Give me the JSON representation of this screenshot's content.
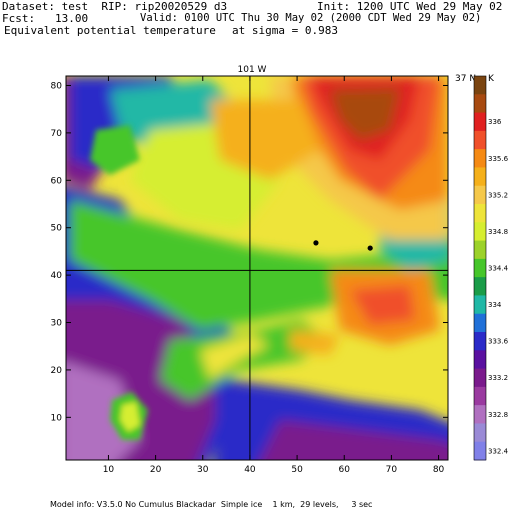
{
  "header": {
    "dataset_line": "Dataset: test  RIP: rip20020529 d3",
    "init_line": "Init: 1200 UTC Wed 29 May 02",
    "fcst_line": "Fcst:   13.00",
    "valid_line": "Valid: 0100 UTC Thu 30 May 02 (2000 CDT Wed 29 May 02)",
    "field_line": "Equivalent potential temperature",
    "sigma_line": "at sigma = 0.983"
  },
  "map_labels": {
    "top": "101 W",
    "right": "37 N",
    "colorbar_unit": "K"
  },
  "footer": "Model info: V3.5.0 No Cumulus Blackadar  Simple ice    1 km,  29 levels,     3 sec",
  "chart_data": {
    "type": "heatmap",
    "title": "Equivalent potential temperature",
    "xlabel": "",
    "ylabel": "",
    "x_ticks": [
      10,
      20,
      30,
      40,
      50,
      60,
      70,
      80
    ],
    "y_ticks": [
      10,
      20,
      30,
      40,
      50,
      60,
      70,
      80
    ],
    "xlim": [
      1,
      82
    ],
    "ylim": [
      1,
      82
    ],
    "colorbar": {
      "unit": "K",
      "levels": [
        {
          "label": "",
          "color": "#7a4410"
        },
        {
          "label": "",
          "color": "#a84a10"
        },
        {
          "label": "336",
          "color": "#e02020"
        },
        {
          "label": "",
          "color": "#f0502a"
        },
        {
          "label": "335.6",
          "color": "#f58a14"
        },
        {
          "label": "",
          "color": "#f5b01a"
        },
        {
          "label": "335.2",
          "color": "#f5c84a"
        },
        {
          "label": "",
          "color": "#eee43a"
        },
        {
          "label": "334.8",
          "color": "#d6ee30"
        },
        {
          "label": "",
          "color": "#9cd22a"
        },
        {
          "label": "334.4",
          "color": "#46c62a"
        },
        {
          "label": "",
          "color": "#1a9c48"
        },
        {
          "label": "334",
          "color": "#20b8a6"
        },
        {
          "label": "",
          "color": "#2070d8"
        },
        {
          "label": "333.6",
          "color": "#2a2ac8"
        },
        {
          "label": "",
          "color": "#5a10a0"
        },
        {
          "label": "333.2",
          "color": "#7a1a8c"
        },
        {
          "label": "",
          "color": "#9a3aa0"
        },
        {
          "label": "332.8",
          "color": "#b070c0"
        },
        {
          "label": "",
          "color": "#9a8ad6"
        },
        {
          "label": "332.4",
          "color": "#8080e8"
        }
      ]
    },
    "lines": {
      "meridian_x": 40,
      "parallel_y": 41
    },
    "markers": [
      {
        "x": 54,
        "y": 46.8
      },
      {
        "x": 65.5,
        "y": 45.7
      }
    ]
  }
}
